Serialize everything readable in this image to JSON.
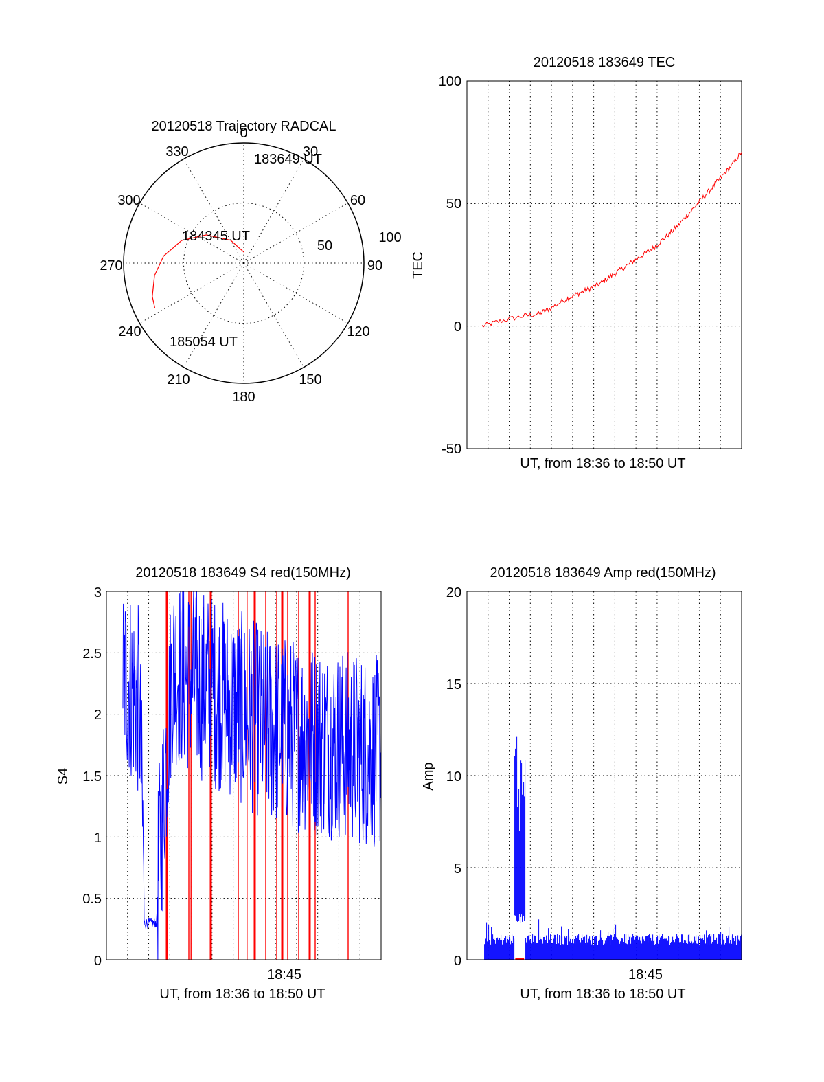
{
  "colors": {
    "red": "#ff0000",
    "blue": "#0000ff",
    "axis": "#000000",
    "grid": "#000000"
  },
  "chart_data": [
    {
      "id": "trajectory",
      "type": "polar",
      "title": "20120518 Trajectory RADCAL",
      "azimuth_ticks": [
        "0",
        "30",
        "60",
        "90",
        "120",
        "150",
        "180",
        "210",
        "240",
        "270",
        "300",
        "330"
      ],
      "radius_ticks": [
        "50",
        "100"
      ],
      "grid": true,
      "annotations": [
        {
          "text": "183649 UT"
        },
        {
          "text": "184345 UT"
        },
        {
          "text": "185054 UT"
        }
      ],
      "series": [
        {
          "color": "#ff0000",
          "points": [
            {
              "az": 2,
              "r": 9
            },
            {
              "az": 330,
              "r": 22
            },
            {
              "az": 307,
              "r": 39
            },
            {
              "az": 290,
              "r": 55
            },
            {
              "az": 275,
              "r": 67
            },
            {
              "az": 262,
              "r": 75
            },
            {
              "az": 250,
              "r": 81
            },
            {
              "az": 243,
              "r": 83
            }
          ]
        }
      ]
    },
    {
      "id": "tec",
      "type": "line",
      "title": "20120518 183649 TEC",
      "xlabel": "UT, from 18:36 to 18:50 UT",
      "ylabel": "TEC",
      "xlim": [
        18.6,
        18.85
      ],
      "ylim": [
        -50,
        100
      ],
      "yticks": [
        "-50",
        "0",
        "50",
        "100"
      ],
      "grid": true,
      "series": [
        {
          "color": "#ff0000",
          "x": [
            18.614,
            18.63,
            18.65,
            18.665,
            18.675,
            18.69,
            18.7,
            18.71,
            18.72,
            18.73,
            18.74,
            18.75,
            18.76,
            18.77,
            18.78,
            18.79,
            18.8,
            18.81,
            18.82,
            18.83,
            18.84,
            18.85
          ],
          "y": [
            0,
            2,
            4,
            5,
            7,
            11,
            13,
            15,
            17,
            20,
            23,
            26,
            29,
            32,
            36,
            40,
            45,
            50,
            55,
            60,
            65,
            71
          ]
        }
      ]
    },
    {
      "id": "s4",
      "type": "line",
      "title": "20120518 183649 S4 red(150MHz)",
      "xlabel": "UT, from 18:36 to 18:50 UT",
      "ylabel": "S4",
      "xlim": [
        18.6,
        18.85
      ],
      "ylim": [
        0,
        3
      ],
      "yticks": [
        "0",
        "0.5",
        "1",
        "1.5",
        "2",
        "2.5",
        "3"
      ],
      "xtick_labels": [
        {
          "x": 18.75,
          "label": "18:45"
        }
      ],
      "grid": true,
      "series": [
        {
          "color": "#0000ff",
          "description": "noisy S4 between about 1.3 and 3 with a drop near 0.3",
          "x": [
            18.6,
            18.62,
            18.63,
            18.635,
            18.64,
            18.645,
            18.66,
            18.7,
            18.75,
            18.8,
            18.85
          ],
          "y": [
            2.4,
            2.2,
            2.0,
            0.32,
            0.3,
            0.33,
            2.3,
            2.1,
            1.8,
            1.7,
            1.6
          ]
        },
        {
          "color": "#ff0000",
          "spikes_x": [
            18.655,
            18.675,
            18.677,
            18.695,
            18.72,
            18.728,
            18.735,
            18.745,
            18.755,
            18.76,
            18.765,
            18.775,
            18.785,
            18.79,
            18.82
          ]
        }
      ]
    },
    {
      "id": "amp",
      "type": "line",
      "title": "20120518 183649 Amp red(150MHz)",
      "xlabel": "UT, from 18:36 to 18:50 UT",
      "ylabel": "Amp",
      "xlim": [
        18.6,
        18.85
      ],
      "ylim": [
        0,
        20
      ],
      "yticks": [
        "0",
        "5",
        "10",
        "15",
        "20"
      ],
      "xtick_labels": [
        {
          "x": 18.75,
          "label": "18:45"
        }
      ],
      "grid": true,
      "series": [
        {
          "color": "#0000ff",
          "description": "dense amplitude noise around 1 with a burst up to about 13 near 18:39",
          "x": [
            18.616,
            18.62,
            18.64,
            18.645,
            18.65,
            18.655,
            18.66,
            18.7,
            18.75,
            18.8,
            18.85
          ],
          "y": [
            1.2,
            1.5,
            1.3,
            13,
            11,
            1.2,
            1.4,
            1.5,
            1.6,
            1.5,
            1.3
          ]
        },
        {
          "color": "#ff0000",
          "description": "near-zero segment around 18:39",
          "x": [
            18.644,
            18.652
          ],
          "y": [
            0,
            0
          ]
        }
      ]
    }
  ]
}
